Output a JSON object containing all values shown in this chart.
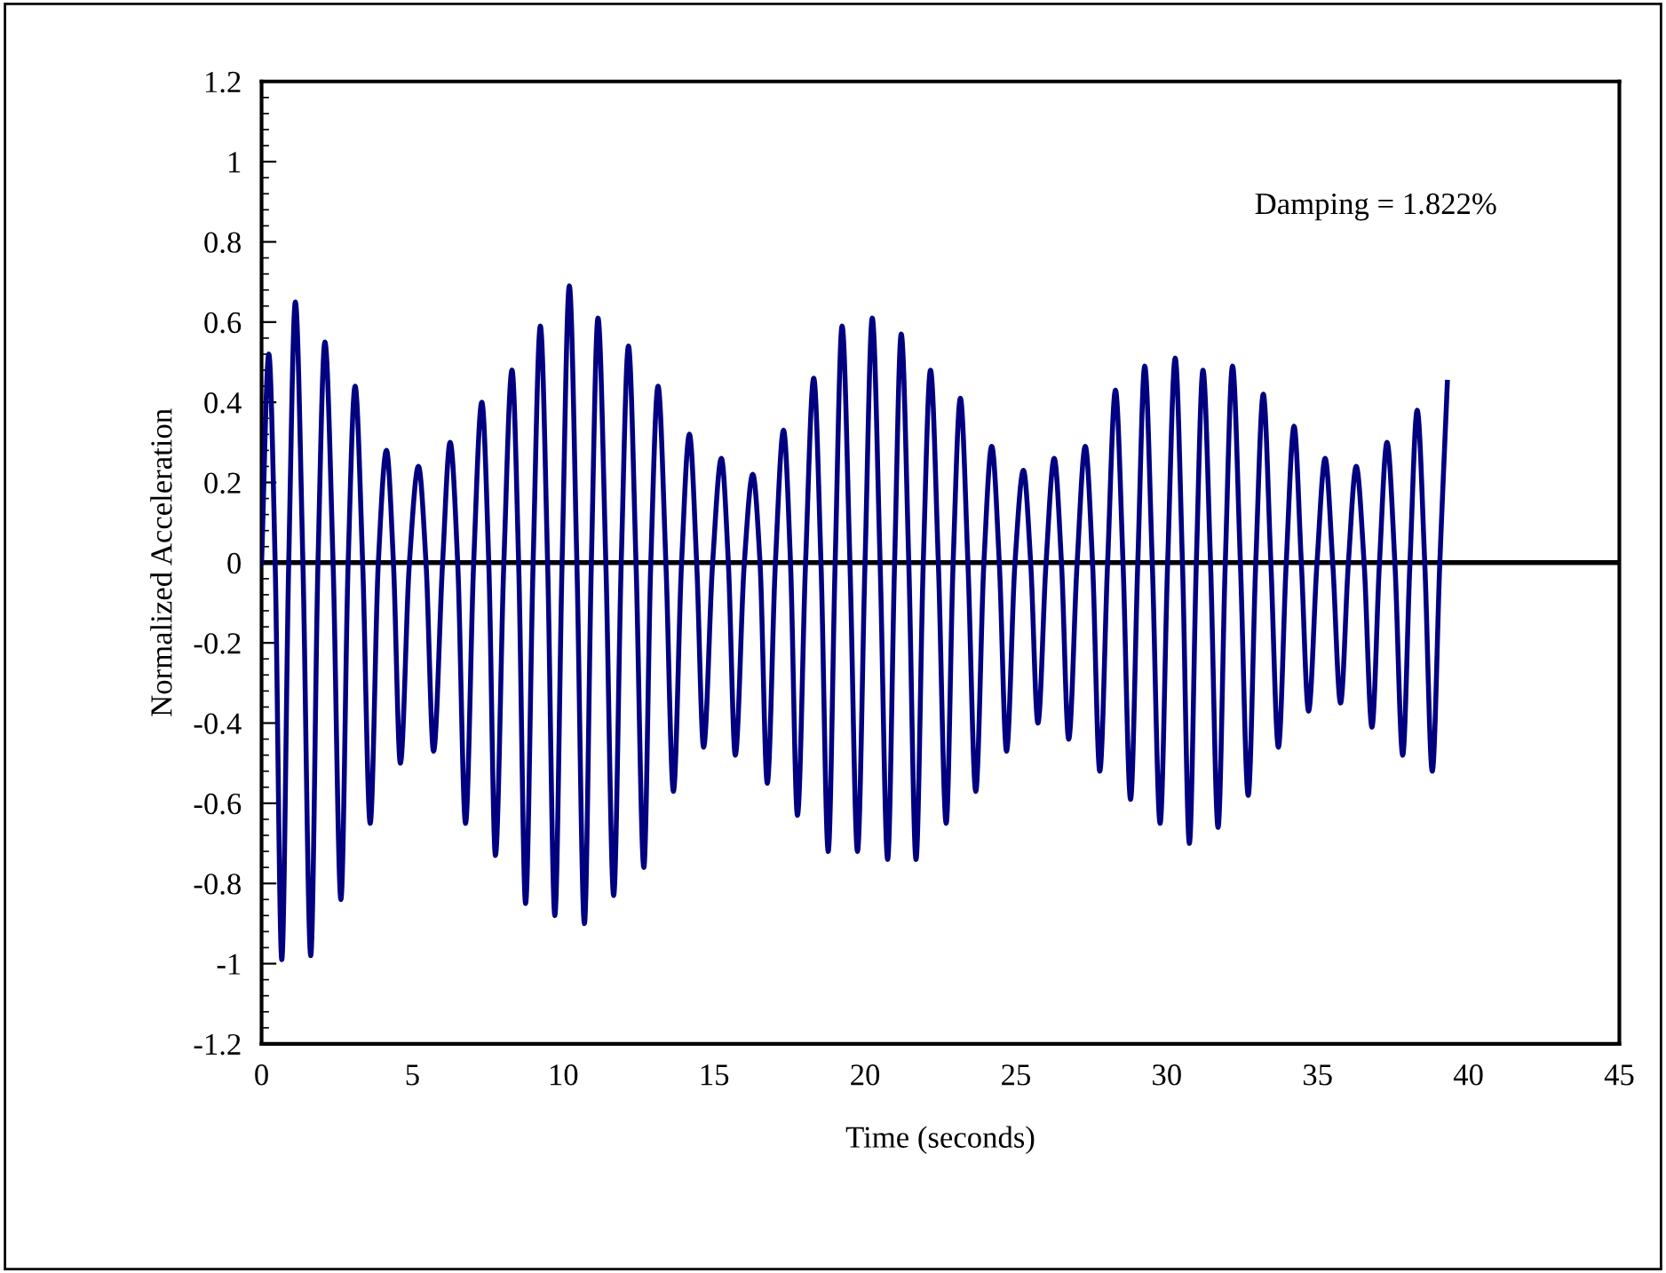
{
  "chart_data": {
    "type": "line",
    "xlabel": "Time (seconds)",
    "ylabel": "Normalized Acceleration",
    "annotations": [
      "Damping = 1.822%"
    ],
    "x": [
      0,
      0.24,
      0.45,
      0.67,
      0.9,
      1.12,
      1.37,
      1.63,
      1.87,
      2.1,
      2.37,
      2.63,
      2.87,
      3.1,
      3.35,
      3.6,
      3.87,
      4.14,
      4.37,
      4.6,
      4.9,
      5.2,
      5.45,
      5.7,
      6.0,
      6.25,
      6.5,
      6.76,
      7.03,
      7.3,
      7.53,
      7.75,
      8.03,
      8.3,
      8.52,
      8.75,
      9.0,
      9.24,
      9.48,
      9.72,
      9.96,
      10.2,
      10.45,
      10.7,
      10.93,
      11.15,
      11.41,
      11.67,
      11.92,
      12.16,
      12.41,
      12.67,
      12.9,
      13.14,
      13.4,
      13.65,
      13.92,
      14.18,
      14.42,
      14.65,
      14.95,
      15.24,
      15.47,
      15.7,
      16.0,
      16.28,
      16.52,
      16.76,
      17.03,
      17.3,
      17.53,
      17.76,
      18.03,
      18.3,
      18.54,
      18.78,
      19.01,
      19.24,
      19.5,
      19.75,
      20.0,
      20.24,
      20.5,
      20.75,
      20.98,
      21.2,
      21.45,
      21.69,
      21.93,
      22.17,
      22.43,
      22.69,
      22.92,
      23.16,
      23.41,
      23.67,
      23.94,
      24.2,
      24.45,
      24.69,
      24.97,
      25.25,
      25.49,
      25.73,
      26.0,
      26.27,
      26.51,
      26.75,
      27.03,
      27.3,
      27.54,
      27.78,
      28.04,
      28.3,
      28.55,
      28.8,
      29.04,
      29.27,
      29.52,
      29.78,
      30.03,
      30.28,
      30.52,
      30.75,
      30.98,
      31.2,
      31.45,
      31.7,
      31.94,
      32.18,
      32.44,
      32.7,
      32.95,
      33.2,
      33.45,
      33.7,
      33.96,
      34.22,
      34.46,
      34.7,
      34.98,
      35.25,
      35.5,
      35.76,
      36.02,
      36.28,
      36.54,
      36.8,
      37.05,
      37.3,
      37.56,
      37.82,
      38.06,
      38.3,
      38.55,
      38.8,
      39.05,
      39.3
    ],
    "series": [
      {
        "color": "#000080",
        "values": [
          0,
          0.52,
          0,
          -0.99,
          0,
          0.65,
          0,
          -0.98,
          0,
          0.55,
          0,
          -0.84,
          0,
          0.44,
          0,
          -0.65,
          0,
          0.28,
          0,
          -0.5,
          0,
          0.24,
          0,
          -0.47,
          0,
          0.3,
          0,
          -0.65,
          0,
          0.4,
          0,
          -0.73,
          0,
          0.48,
          0,
          -0.85,
          0,
          0.59,
          0,
          -0.88,
          0,
          0.69,
          0,
          -0.9,
          0,
          0.61,
          0,
          -0.83,
          0,
          0.54,
          0,
          -0.76,
          0,
          0.44,
          0,
          -0.57,
          0,
          0.32,
          0,
          -0.46,
          0,
          0.26,
          0,
          -0.48,
          0,
          0.22,
          0,
          -0.55,
          0,
          0.33,
          0,
          -0.63,
          0,
          0.46,
          0,
          -0.72,
          0,
          0.59,
          0,
          -0.72,
          0,
          0.61,
          0,
          -0.74,
          0,
          0.57,
          0,
          -0.74,
          0,
          0.48,
          0,
          -0.65,
          0,
          0.41,
          0,
          -0.57,
          0,
          0.29,
          0,
          -0.47,
          0,
          0.23,
          0,
          -0.4,
          0,
          0.26,
          0,
          -0.44,
          0,
          0.29,
          0,
          -0.52,
          0,
          0.43,
          0,
          -0.59,
          0,
          0.49,
          0,
          -0.65,
          0,
          0.51,
          0,
          -0.7,
          0,
          0.48,
          0,
          -0.66,
          0,
          0.49,
          0,
          -0.58,
          0,
          0.42,
          0,
          -0.46,
          0,
          0.34,
          0,
          -0.37,
          0,
          0.26,
          0,
          -0.35,
          0,
          0.24,
          0,
          -0.41,
          0,
          0.3,
          0,
          -0.48,
          0,
          0.38,
          0,
          -0.52,
          0,
          0.45
        ]
      }
    ],
    "xlim": [
      0,
      45
    ],
    "xticks": [
      0,
      5,
      10,
      15,
      20,
      25,
      30,
      35,
      40,
      45
    ],
    "ylim": [
      -1.2,
      1.2
    ],
    "yticks": [
      -1.2,
      -1,
      -0.8,
      -0.6,
      -0.4,
      -0.2,
      0,
      0.2,
      0.4,
      0.6,
      0.8,
      1,
      1.2
    ],
    "ref_lines": [
      {
        "axis": "y",
        "value": 0,
        "color": "#000000"
      }
    ],
    "grid": false,
    "marker": "none",
    "line_style": "solid"
  }
}
